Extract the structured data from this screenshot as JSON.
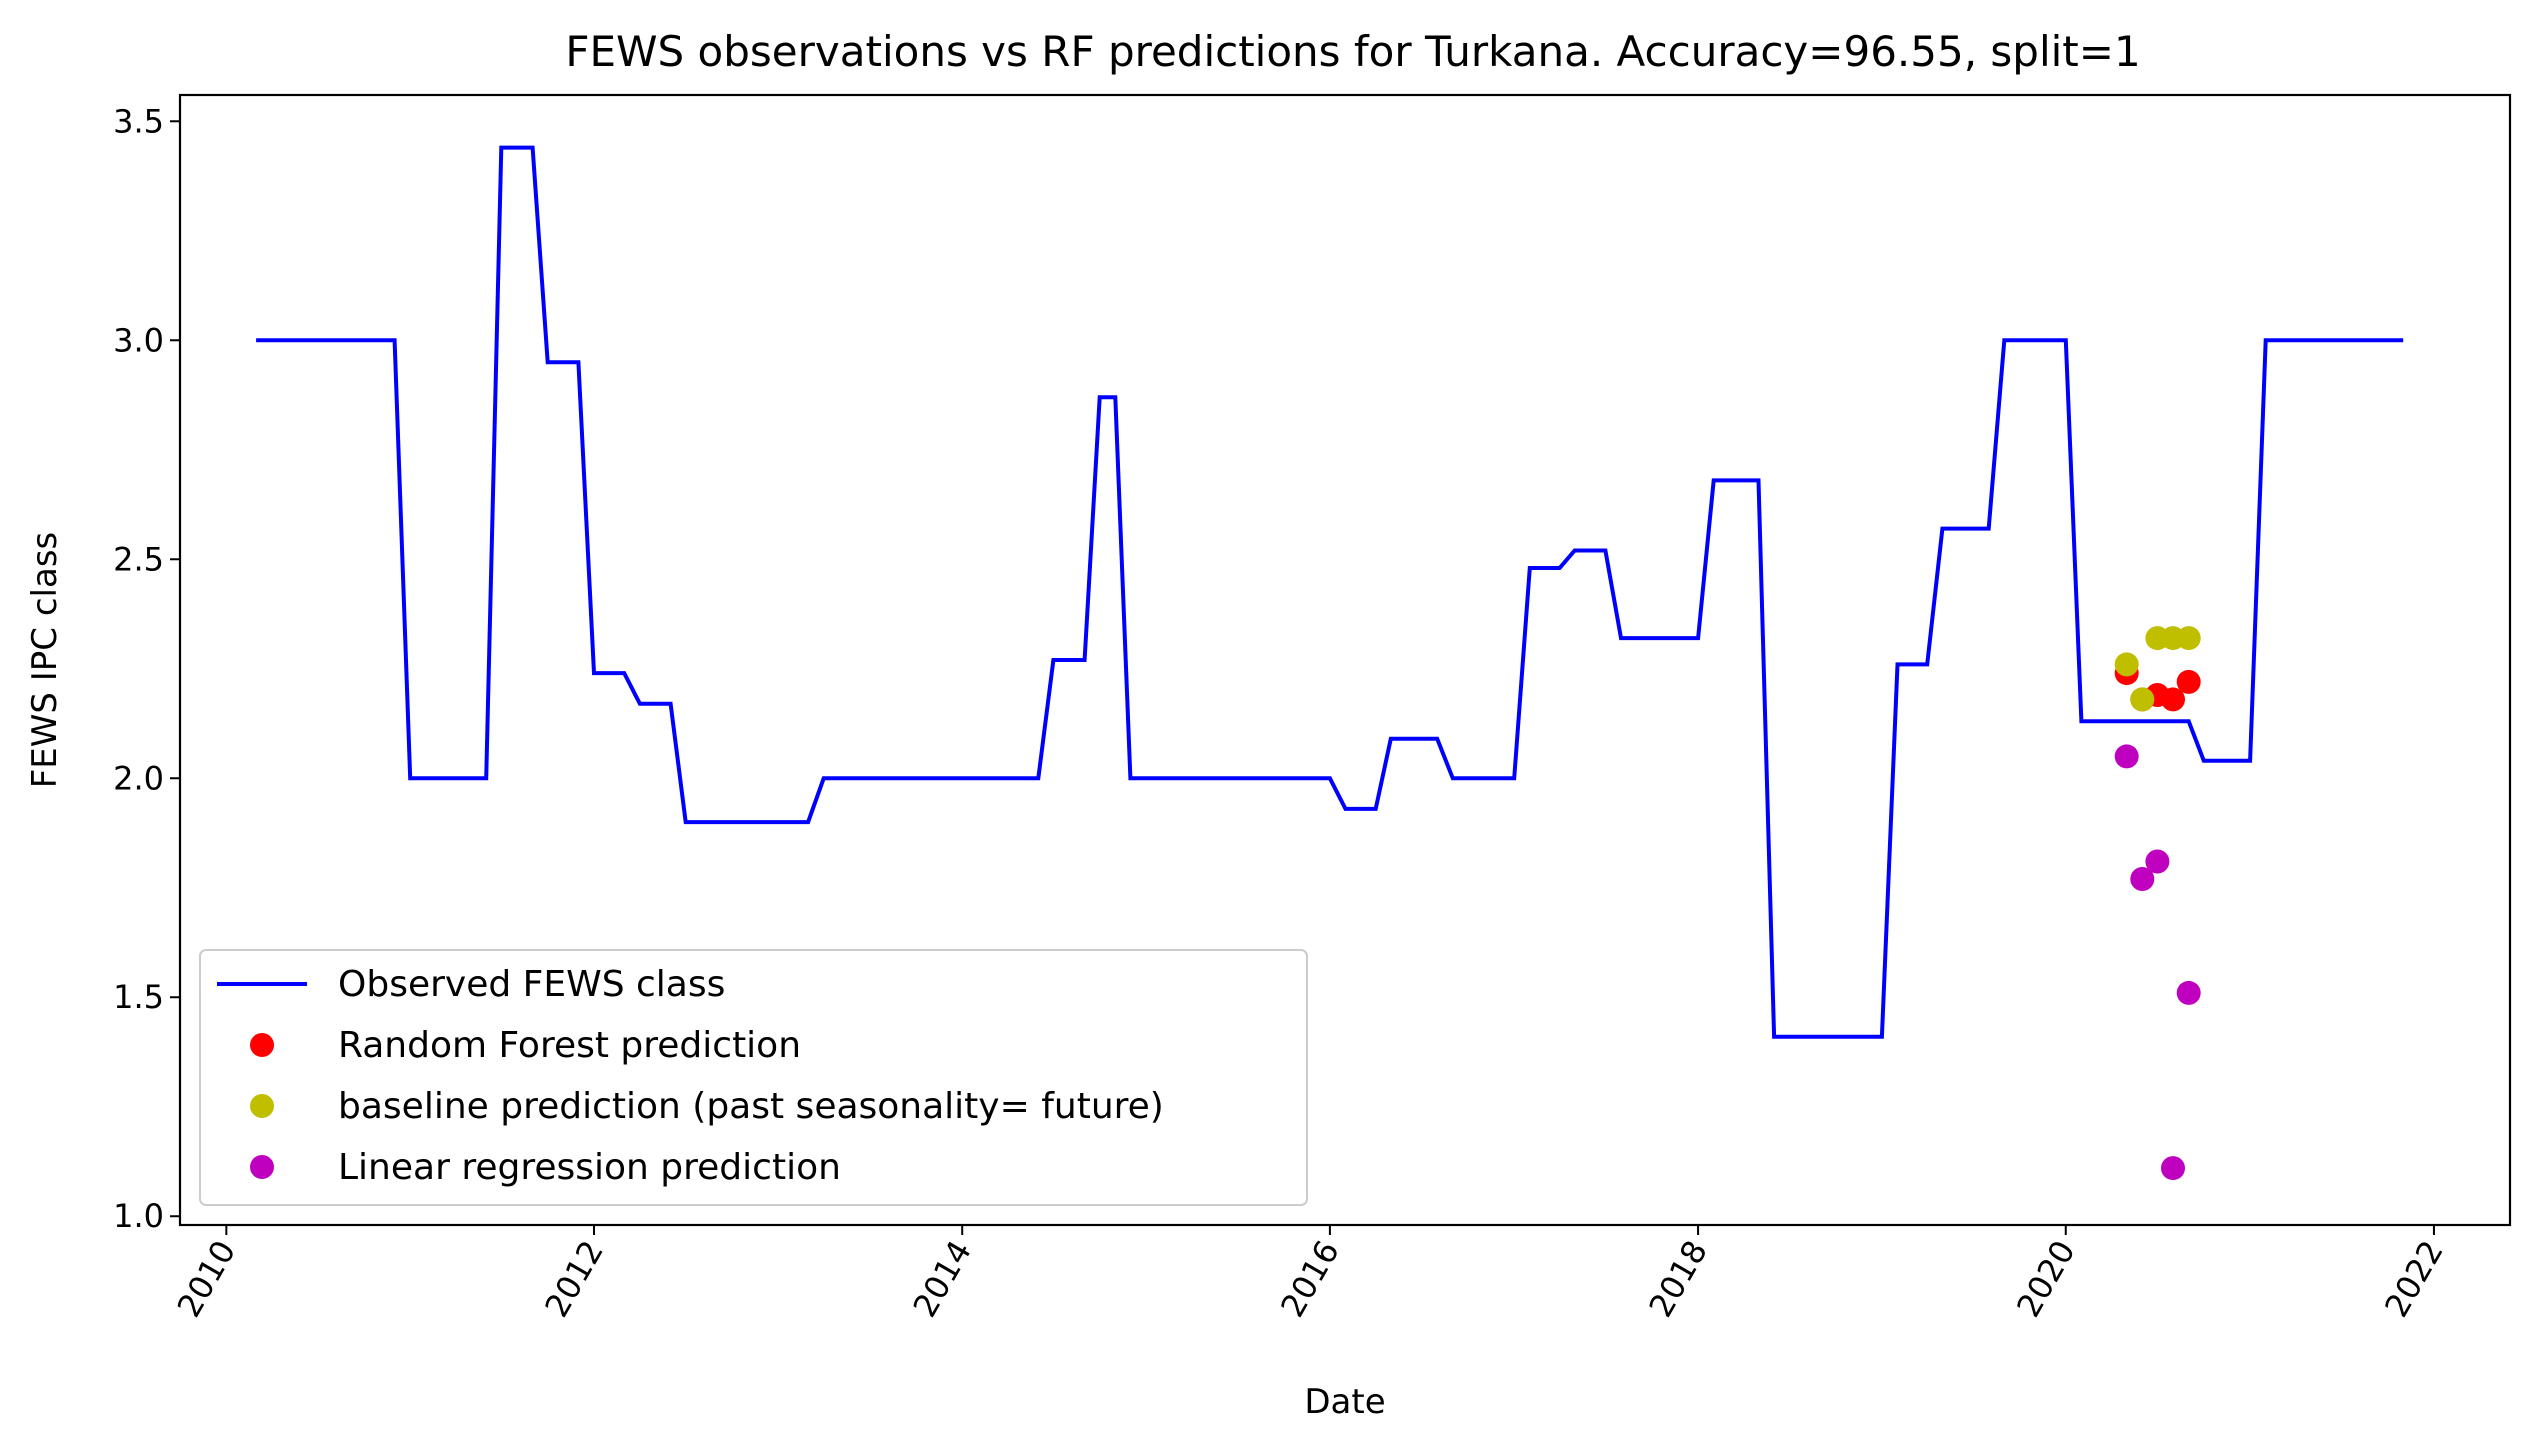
{
  "chart_data": {
    "type": "line",
    "title": "FEWS observations vs RF predictions for Turkana. Accuracy=96.55, split=1",
    "xlabel": "Date",
    "ylabel": "FEWS IPC class",
    "xlim": [
      "2009-10-01",
      "2022-06-01"
    ],
    "ylim": [
      0.98,
      3.56
    ],
    "xticks": [
      {
        "date": "2010-01-01",
        "label": "2010"
      },
      {
        "date": "2012-01-01",
        "label": "2012"
      },
      {
        "date": "2014-01-01",
        "label": "2014"
      },
      {
        "date": "2016-01-01",
        "label": "2016"
      },
      {
        "date": "2018-01-01",
        "label": "2018"
      },
      {
        "date": "2020-01-01",
        "label": "2020"
      },
      {
        "date": "2022-01-01",
        "label": "2022"
      }
    ],
    "yticks": [
      {
        "value": 1.0,
        "label": "1.0"
      },
      {
        "value": 1.5,
        "label": "1.5"
      },
      {
        "value": 2.0,
        "label": "2.0"
      },
      {
        "value": 2.5,
        "label": "2.5"
      },
      {
        "value": 3.0,
        "label": "3.0"
      },
      {
        "value": 3.5,
        "label": "3.5"
      }
    ],
    "grid": false,
    "legend_position": "lower-left",
    "series": [
      {
        "name": "Observed FEWS class",
        "kind": "line",
        "color": "#0000ff",
        "x": [
          "2010-03-01",
          "2010-12-01",
          "2011-01-01",
          "2011-06-01",
          "2011-07-01",
          "2011-08-01",
          "2011-09-01",
          "2011-10-01",
          "2011-11-01",
          "2011-12-01",
          "2012-01-01",
          "2012-02-01",
          "2012-03-01",
          "2012-04-01",
          "2012-05-01",
          "2012-06-01",
          "2012-07-01",
          "2013-03-01",
          "2013-04-01",
          "2014-06-01",
          "2014-07-01",
          "2014-08-01",
          "2014-09-01",
          "2014-10-01",
          "2014-11-01",
          "2014-12-01",
          "2016-01-01",
          "2016-02-01",
          "2016-04-01",
          "2016-05-01",
          "2016-07-01",
          "2016-08-01",
          "2016-09-01",
          "2016-10-01",
          "2016-12-01",
          "2017-01-01",
          "2017-02-01",
          "2017-03-01",
          "2017-04-01",
          "2017-05-01",
          "2017-06-01",
          "2017-07-01",
          "2017-08-01",
          "2017-09-01",
          "2017-10-01",
          "2017-12-01",
          "2018-01-01",
          "2018-02-01",
          "2018-04-01",
          "2018-05-01",
          "2018-06-01",
          "2018-12-01",
          "2019-01-01",
          "2019-02-01",
          "2019-04-01",
          "2019-05-01",
          "2019-06-01",
          "2019-08-01",
          "2019-09-01",
          "2019-10-01",
          "2019-12-01",
          "2020-01-01",
          "2020-02-01",
          "2020-08-01",
          "2020-09-01",
          "2020-10-01",
          "2020-12-01",
          "2021-01-01",
          "2021-02-01",
          "2021-11-01"
        ],
        "y": [
          3.0,
          3.0,
          2.0,
          2.0,
          3.44,
          3.44,
          3.44,
          2.95,
          2.95,
          2.95,
          2.24,
          2.24,
          2.24,
          2.17,
          2.17,
          2.17,
          1.9,
          1.9,
          2.0,
          2.0,
          2.27,
          2.27,
          2.27,
          2.87,
          2.87,
          2.0,
          2.0,
          1.93,
          1.93,
          2.09,
          2.09,
          2.09,
          2.0,
          2.0,
          2.0,
          2.0,
          2.48,
          2.48,
          2.48,
          2.52,
          2.52,
          2.52,
          2.32,
          2.32,
          2.32,
          2.32,
          2.32,
          2.68,
          2.68,
          2.68,
          1.41,
          1.41,
          1.41,
          2.26,
          2.26,
          2.57,
          2.57,
          2.57,
          3.0,
          3.0,
          3.0,
          3.0,
          2.13,
          2.13,
          2.13,
          2.04,
          2.04,
          2.04,
          3.0,
          3.0
        ]
      },
      {
        "name": "Random Forest prediction",
        "kind": "scatter",
        "color": "#ff0000",
        "x": [
          "2020-05-01",
          "2020-06-01",
          "2020-07-01",
          "2020-08-01",
          "2020-09-01"
        ],
        "y": [
          2.24,
          2.18,
          2.19,
          2.18,
          2.22
        ]
      },
      {
        "name": "baseline prediction (past seasonality= future)",
        "kind": "scatter",
        "color": "#bfbf00",
        "x": [
          "2020-05-01",
          "2020-06-01",
          "2020-07-01",
          "2020-08-01",
          "2020-09-01"
        ],
        "y": [
          2.26,
          2.18,
          2.32,
          2.32,
          2.32
        ]
      },
      {
        "name": "Linear regression prediction",
        "kind": "scatter",
        "color": "#bf00bf",
        "x": [
          "2020-05-01",
          "2020-06-01",
          "2020-07-01",
          "2020-08-01",
          "2020-09-01"
        ],
        "y": [
          2.05,
          1.77,
          1.81,
          1.11,
          1.51
        ]
      }
    ]
  }
}
